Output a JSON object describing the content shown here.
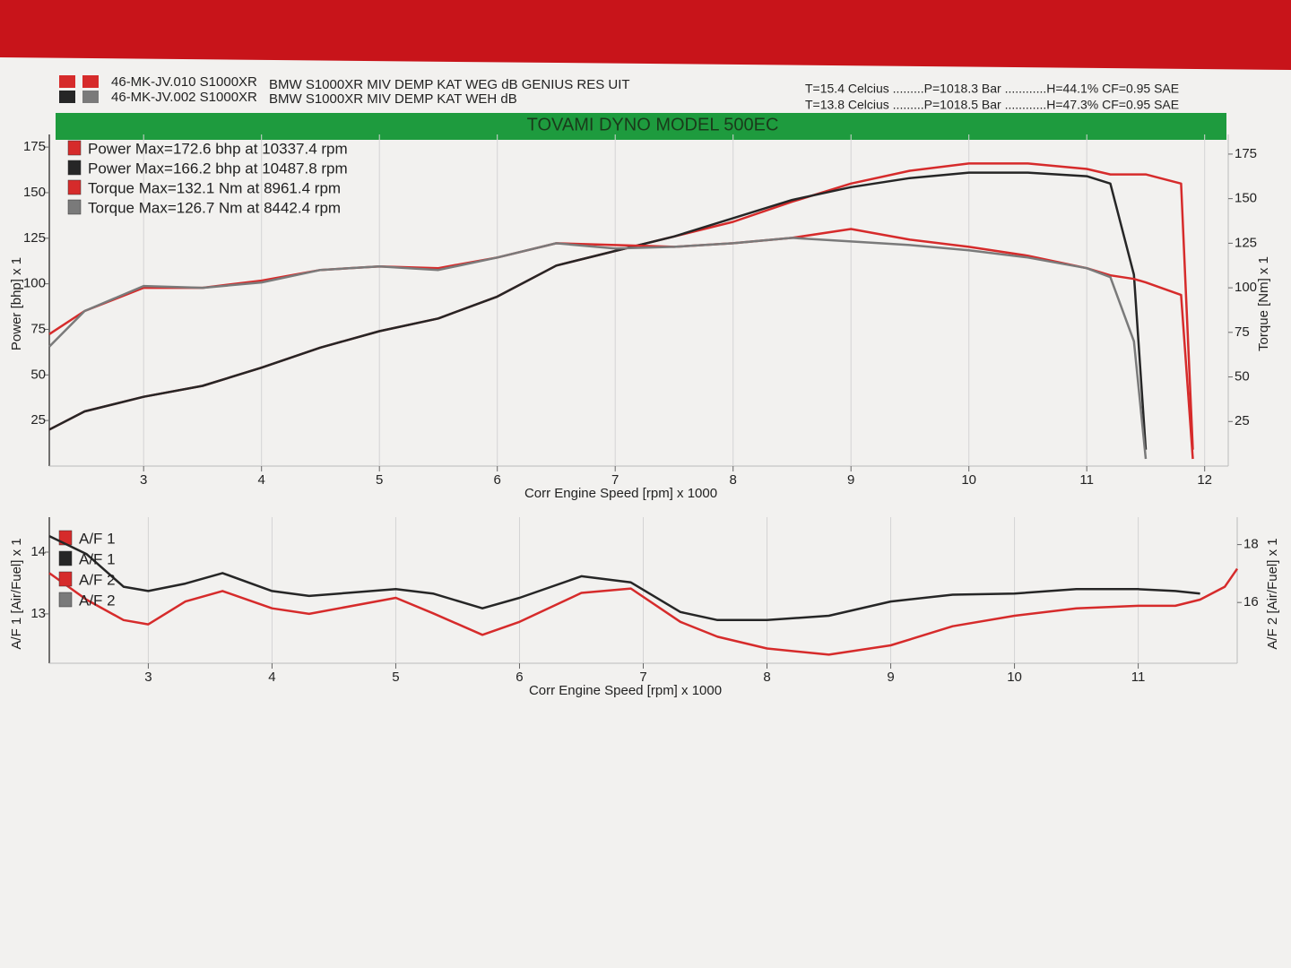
{
  "header": {
    "runs": [
      {
        "code": "46-MK-JV.010 S1000XR",
        "description": "BMW S1000XR MIV DEMP KAT WEG dB GENIUS RES UIT",
        "conditions": "T=15.4 Celcius .........P=1018.3 Bar ............H=44.1% CF=0.95 SAE"
      },
      {
        "code": "46-MK-JV.002 S1000XR",
        "description": "BMW S1000XR MIV DEMP KAT WEH dB",
        "conditions": "T=13.8 Celcius .........P=1018.5 Bar ............H=47.3% CF=0.95 SAE"
      }
    ],
    "title": "TOVAMI DYNO MODEL 500EC"
  },
  "chart_data": [
    {
      "type": "line",
      "x_label": "Corr Engine Speed [rpm] x 1000",
      "y_label": "Power [bhp] x 1",
      "y2_label": "Torque [Nm] x 1",
      "xlim": [
        2.2,
        12.2
      ],
      "xticks": [
        3,
        4,
        5,
        6,
        7,
        8,
        9,
        10,
        11,
        12
      ],
      "ylim": [
        0,
        178
      ],
      "yticks": [
        25,
        50,
        75,
        100,
        125,
        150,
        175
      ],
      "y2lim": [
        0,
        182
      ],
      "y2ticks": [
        25,
        50,
        75,
        100,
        125,
        150,
        175
      ],
      "grid": true,
      "x": [
        2.2,
        2.5,
        3,
        3.5,
        4,
        4.5,
        5,
        5.5,
        6,
        6.5,
        7,
        7.5,
        8,
        8.5,
        9,
        9.5,
        10,
        10.5,
        11,
        11.2,
        11.4,
        11.5,
        11.8,
        11.9
      ],
      "series": [
        {
          "name": "Power Max=172.6 bhp at 10337.4 rpm",
          "color": "#d62b2b",
          "values": [
            20,
            30,
            38,
            44,
            54,
            65,
            74,
            81,
            93,
            110,
            118,
            126,
            134,
            145,
            155,
            162,
            166,
            166,
            163,
            160,
            160,
            160,
            155,
            9
          ]
        },
        {
          "name": "Power Max=166.2 bhp at 10487.8 rpm",
          "color": "#262626",
          "values": [
            20,
            30,
            38,
            44,
            54,
            65,
            74,
            81,
            93,
            110,
            118,
            126,
            136,
            146,
            153,
            158,
            161,
            161,
            159,
            155,
            105,
            9,
            null,
            null
          ]
        },
        {
          "name": "Torque  Max=132.1 Nm at 8961.4 rpm",
          "color": "#d62b2b",
          "axis": "y2",
          "values": [
            74,
            87,
            100,
            100,
            104,
            110,
            112,
            111,
            117,
            125,
            124,
            123,
            125,
            128,
            133,
            127,
            123,
            118,
            111,
            107,
            105,
            103,
            96,
            4
          ]
        },
        {
          "name": "Torque  Max=126.7 Nm at 8442.4 rpm",
          "color": "#7a7a7a",
          "axis": "y2",
          "values": [
            67,
            87,
            101,
            100,
            103,
            110,
            112,
            110,
            117,
            125,
            122,
            123,
            125,
            128,
            126,
            124,
            121,
            117,
            111,
            106,
            70,
            4,
            null,
            null
          ]
        }
      ]
    },
    {
      "type": "line",
      "x_label": "Corr Engine Speed [rpm] x 1000",
      "y_label": "A/F 1 [Air/Fuel] x 1",
      "y2_label": "A/F 2 [Air/Fuel] x 1",
      "xlim": [
        2.2,
        11.8
      ],
      "xticks": [
        3,
        4,
        5,
        6,
        7,
        8,
        9,
        10,
        11
      ],
      "ylim": [
        12.2,
        14.45
      ],
      "yticks": [
        13,
        14
      ],
      "y2lim": [
        13.9,
        18.7
      ],
      "y2ticks": [
        16,
        18
      ],
      "grid": true,
      "x": [
        2.2,
        2.5,
        2.8,
        3,
        3.3,
        3.6,
        4,
        4.3,
        5,
        5.3,
        5.7,
        6,
        6.5,
        6.9,
        7.3,
        7.6,
        8,
        8.5,
        9,
        9.5,
        10,
        10.5,
        11,
        11.3,
        11.5,
        11.7,
        11.8
      ],
      "series": [
        {
          "name": "A/F 1",
          "color": "#d62b2b",
          "values": [
            13.66,
            13.23,
            12.9,
            12.83,
            13.2,
            13.37,
            13.09,
            13.0,
            13.26,
            13.01,
            12.66,
            12.87,
            13.34,
            13.41,
            12.87,
            12.63,
            12.44,
            12.34,
            12.49,
            12.8,
            12.97,
            13.09,
            13.13,
            13.13,
            13.23,
            13.44,
            13.73
          ]
        },
        {
          "name": "A/F 1",
          "color": "#262626",
          "values": [
            14.26,
            13.97,
            13.44,
            13.37,
            13.49,
            13.66,
            13.37,
            13.29,
            13.4,
            13.33,
            13.09,
            13.26,
            13.61,
            13.51,
            13.03,
            12.9,
            12.9,
            12.97,
            13.2,
            13.31,
            13.33,
            13.4,
            13.4,
            13.37,
            13.33,
            null,
            null
          ]
        },
        {
          "name": "A/F 2",
          "color": "#d62b2b",
          "axis": "y2",
          "values": [
            null,
            null,
            null,
            null,
            null,
            null,
            null,
            null,
            null,
            null,
            null,
            null,
            null,
            null,
            null,
            null,
            null,
            null,
            null,
            null,
            null,
            null,
            null,
            null,
            null,
            null,
            null
          ]
        },
        {
          "name": "A/F 2",
          "color": "#7a7a7a",
          "axis": "y2",
          "values": [
            null,
            null,
            null,
            null,
            null,
            null,
            null,
            null,
            null,
            null,
            null,
            null,
            null,
            null,
            null,
            null,
            null,
            null,
            null,
            null,
            null,
            null,
            null,
            null,
            null,
            null,
            null
          ]
        }
      ]
    }
  ]
}
